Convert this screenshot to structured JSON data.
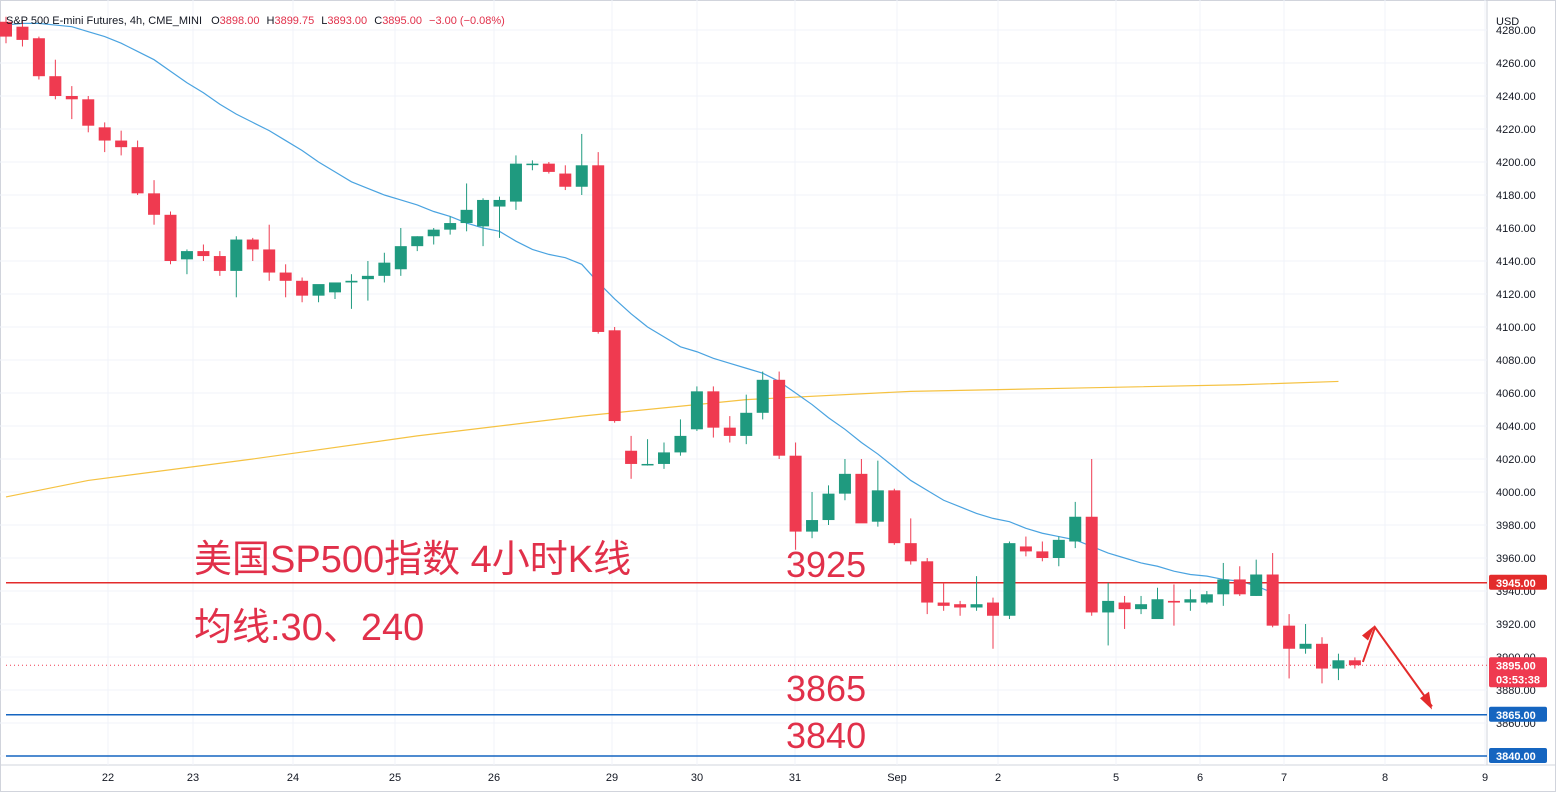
{
  "header": {
    "symbol": "S&P 500 E-mini Futures, 4h, CME_MINI",
    "o_label": "O",
    "o": "3898.00",
    "h_label": "H",
    "h": "3899.75",
    "l_label": "L",
    "l": "3893.00",
    "c_label": "C",
    "c": "3895.00",
    "change": "−3.00 (−0.08%)"
  },
  "currency": "USD",
  "colors": {
    "up": "#1f9a7f",
    "down": "#ef3a50",
    "ma30": "#4aa3e0",
    "ma240": "#f5c242",
    "resistance": "#e32b2b",
    "support": "#1565c0",
    "annotation": "#e1304a"
  },
  "chart_data": {
    "type": "candlestick",
    "x_ticks": [
      "22",
      "23",
      "24",
      "25",
      "26",
      "29",
      "30",
      "31",
      "Sep",
      "2",
      "5",
      "6",
      "7",
      "8",
      "9"
    ],
    "y_ticks": [
      "4280.00",
      "4260.00",
      "4240.00",
      "4220.00",
      "4200.00",
      "4180.00",
      "4160.00",
      "4140.00",
      "4120.00",
      "4100.00",
      "4080.00",
      "4060.00",
      "4040.00",
      "4020.00",
      "4000.00",
      "3980.00",
      "3960.00",
      "3940.00",
      "3920.00",
      "3900.00",
      "3880.00",
      "3860.00",
      "3840.00"
    ],
    "ylim": [
      3830,
      4290
    ],
    "candles": [
      [
        4285,
        4288,
        4272,
        4276
      ],
      [
        4282,
        4286,
        4270,
        4274
      ],
      [
        4275,
        4276,
        4250,
        4252
      ],
      [
        4252,
        4262,
        4238,
        4240
      ],
      [
        4240,
        4246,
        4226,
        4238
      ],
      [
        4238,
        4240,
        4218,
        4222
      ],
      [
        4221,
        4224,
        4206,
        4213
      ],
      [
        4213,
        4219,
        4204,
        4209
      ],
      [
        4209,
        4213,
        4180,
        4181
      ],
      [
        4181,
        4189,
        4162,
        4168
      ],
      [
        4168,
        4170,
        4138,
        4140
      ],
      [
        4141,
        4147,
        4132,
        4146
      ],
      [
        4146,
        4150,
        4140,
        4143
      ],
      [
        4143,
        4146,
        4131,
        4134
      ],
      [
        4134,
        4155,
        4118,
        4153
      ],
      [
        4153,
        4154,
        4140,
        4147
      ],
      [
        4147,
        4162,
        4128,
        4133
      ],
      [
        4133,
        4138,
        4118,
        4128
      ],
      [
        4128,
        4130,
        4115,
        4119
      ],
      [
        4119,
        4124,
        4115,
        4126
      ],
      [
        4121,
        4127,
        4117,
        4127
      ],
      [
        4127,
        4132,
        4111,
        4128
      ],
      [
        4129,
        4140,
        4116,
        4131
      ],
      [
        4131,
        4145,
        4127,
        4139
      ],
      [
        4135,
        4160,
        4131,
        4149
      ],
      [
        4149,
        4155,
        4146,
        4155
      ],
      [
        4155,
        4160,
        4150,
        4159
      ],
      [
        4159,
        4167,
        4156,
        4163
      ],
      [
        4163,
        4187,
        4158,
        4171
      ],
      [
        4161,
        4178,
        4149,
        4177
      ],
      [
        4173,
        4179,
        4154,
        4177
      ],
      [
        4176,
        4204,
        4171,
        4199
      ],
      [
        4199,
        4201,
        4195,
        4199
      ],
      [
        4199,
        4200,
        4193,
        4194
      ],
      [
        4193,
        4198,
        4183,
        4185
      ],
      [
        4185,
        4217,
        4180,
        4198
      ],
      [
        4198,
        4206,
        4096,
        4097
      ],
      [
        4098,
        4100,
        4042,
        4043
      ],
      [
        4025,
        4034,
        4008,
        4017
      ],
      [
        4017,
        4032,
        4016,
        4017
      ],
      [
        4017,
        4030,
        4014,
        4024
      ],
      [
        4024,
        4044,
        4022,
        4034
      ],
      [
        4038,
        4064,
        4037,
        4061
      ],
      [
        4061,
        4064,
        4033,
        4039
      ],
      [
        4039,
        4046,
        4030,
        4034
      ],
      [
        4034,
        4059,
        4029,
        4048
      ],
      [
        4048,
        4073,
        4044,
        4068
      ],
      [
        4068,
        4073,
        4020,
        4022
      ],
      [
        4022,
        4030,
        3965,
        3976
      ],
      [
        3976,
        4000,
        3972,
        3983
      ],
      [
        3983,
        4004,
        3980,
        3999
      ],
      [
        3999,
        4020,
        3995,
        4011
      ],
      [
        4011,
        4020,
        3982,
        3981
      ],
      [
        3982,
        4019,
        3979,
        4001
      ],
      [
        4001,
        4002,
        3968,
        3969
      ],
      [
        3969,
        3984,
        3956,
        3958
      ],
      [
        3958,
        3960,
        3926,
        3933
      ],
      [
        3933,
        3945,
        3928,
        3931
      ],
      [
        3932,
        3934,
        3925,
        3930
      ],
      [
        3930,
        3949,
        3928,
        3932
      ],
      [
        3933,
        3936,
        3905,
        3925
      ],
      [
        3925,
        3970,
        3923,
        3969
      ],
      [
        3967,
        3973,
        3961,
        3964
      ],
      [
        3964,
        3970,
        3958,
        3960
      ],
      [
        3960,
        3973,
        3955,
        3971
      ],
      [
        3970,
        3994,
        3966,
        3985
      ],
      [
        3985,
        4020,
        3925,
        3927
      ],
      [
        3927,
        3945,
        3907,
        3934
      ],
      [
        3933,
        3937,
        3917,
        3929
      ],
      [
        3929,
        3937,
        3926,
        3932
      ],
      [
        3923,
        3942,
        3923,
        3935
      ],
      [
        3934,
        3944,
        3919,
        3933
      ],
      [
        3933,
        3941,
        3928,
        3935
      ],
      [
        3933,
        3940,
        3932,
        3938
      ],
      [
        3938,
        3957,
        3931,
        3947
      ],
      [
        3947,
        3955,
        3937,
        3938
      ],
      [
        3937,
        3959,
        3937,
        3950
      ],
      [
        3950,
        3963,
        3918,
        3919
      ],
      [
        3919,
        3926,
        3887,
        3905
      ],
      [
        3905,
        3920,
        3902,
        3908
      ],
      [
        3908,
        3912,
        3884,
        3893
      ],
      [
        3893,
        3902,
        3886,
        3898
      ],
      [
        3898,
        3899.75,
        3893,
        3895
      ]
    ],
    "ma30": [
      4283,
      4284,
      4284,
      4283,
      4282,
      4279,
      4276,
      4272,
      4267,
      4262,
      4255,
      4248,
      4242,
      4235,
      4229,
      4224,
      4219,
      4213,
      4207,
      4200,
      4194,
      4188,
      4184,
      4180,
      4177,
      4174,
      4170,
      4167,
      4163,
      4160,
      4158,
      4152,
      4147,
      4144,
      4142,
      4138,
      4127,
      4117,
      4108,
      4100,
      4094,
      4088,
      4085,
      4081,
      4078,
      4075,
      4072,
      4067,
      4060,
      4053,
      4045,
      4038,
      4030,
      4023,
      4015,
      4007,
      4001,
      3995,
      3991,
      3987,
      3984,
      3982,
      3978,
      3975,
      3973,
      3971,
      3967,
      3963,
      3960,
      3957,
      3955,
      3952,
      3950,
      3949,
      3947,
      3946,
      3943,
      3939
    ],
    "ma240_points": [
      [
        0,
        3997
      ],
      [
        5,
        4007
      ],
      [
        15,
        4020
      ],
      [
        25,
        4034
      ],
      [
        35,
        4046
      ],
      [
        45,
        4056
      ],
      [
        55,
        4061
      ],
      [
        65,
        4063
      ],
      [
        75,
        4065
      ],
      [
        81,
        4067
      ]
    ],
    "resistance": {
      "value": 3945.0,
      "label": "3945.00"
    },
    "supports": [
      {
        "value": 3865.0,
        "label": "3865.00"
      },
      {
        "value": 3840.0,
        "label": "3840.00"
      }
    ],
    "last_price": {
      "value": 3895.0,
      "label": "3895.00",
      "countdown": "03:53:38"
    },
    "annotations": {
      "title": "美国SP500指数 4小时K线",
      "subtitle": "均线:30、240",
      "level_3925": "3925",
      "level_3865": "3865",
      "level_3840": "3840"
    }
  }
}
